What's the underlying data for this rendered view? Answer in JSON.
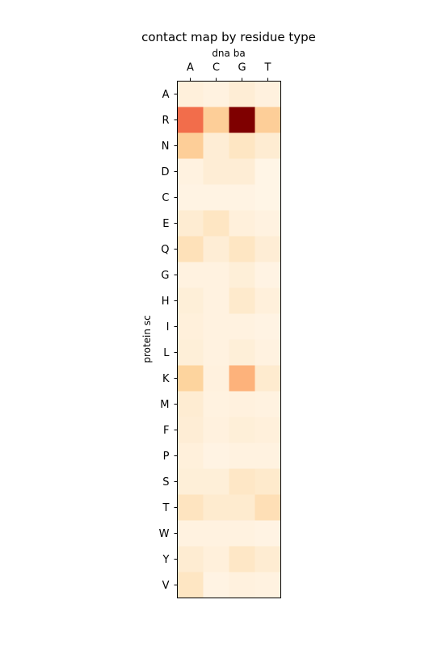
{
  "chart_data": {
    "type": "heatmap",
    "title": "contact map by residue type",
    "xlabel": "dna ba",
    "ylabel": "protein sc",
    "x_categories": [
      "A",
      "C",
      "G",
      "T"
    ],
    "y_categories": [
      "A",
      "R",
      "N",
      "D",
      "C",
      "E",
      "Q",
      "G",
      "H",
      "I",
      "L",
      "K",
      "M",
      "F",
      "P",
      "S",
      "T",
      "W",
      "Y",
      "V"
    ],
    "colormap": "OrRd",
    "values": [
      [
        0.06,
        0.04,
        0.08,
        0.05
      ],
      [
        0.6,
        0.28,
        1.0,
        0.28
      ],
      [
        0.28,
        0.08,
        0.14,
        0.09
      ],
      [
        0.04,
        0.08,
        0.08,
        0.02
      ],
      [
        0.03,
        0.03,
        0.03,
        0.02
      ],
      [
        0.09,
        0.14,
        0.06,
        0.04
      ],
      [
        0.17,
        0.08,
        0.14,
        0.08
      ],
      [
        0.04,
        0.04,
        0.07,
        0.03
      ],
      [
        0.07,
        0.04,
        0.11,
        0.06
      ],
      [
        0.06,
        0.04,
        0.04,
        0.03
      ],
      [
        0.07,
        0.04,
        0.07,
        0.04
      ],
      [
        0.25,
        0.05,
        0.4,
        0.1
      ],
      [
        0.09,
        0.04,
        0.05,
        0.04
      ],
      [
        0.08,
        0.05,
        0.07,
        0.06
      ],
      [
        0.06,
        0.03,
        0.04,
        0.04
      ],
      [
        0.07,
        0.07,
        0.13,
        0.11
      ],
      [
        0.15,
        0.1,
        0.1,
        0.18
      ],
      [
        0.04,
        0.04,
        0.04,
        0.03
      ],
      [
        0.09,
        0.06,
        0.13,
        0.09
      ],
      [
        0.14,
        0.03,
        0.05,
        0.04
      ]
    ],
    "grid": false,
    "legend": "none"
  }
}
